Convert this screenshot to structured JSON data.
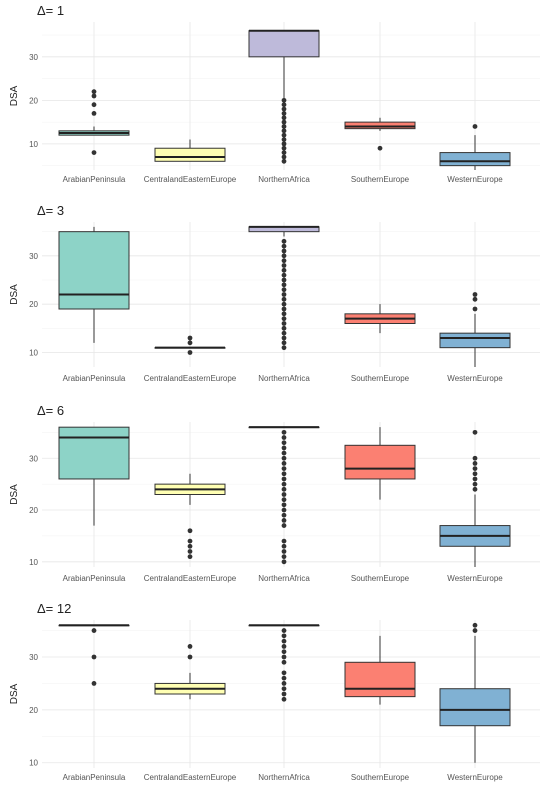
{
  "chart_data": [
    {
      "type": "boxplot",
      "title": "Δ= 1",
      "ylabel": "DSA",
      "ylim": [
        4,
        38
      ],
      "yticks": [
        10,
        20,
        30
      ],
      "categories": [
        "ArabianPeninsula",
        "CentralandEasternEurope",
        "NorthernAfrica",
        "SouthernEurope",
        "WesternEurope"
      ],
      "boxes": [
        {
          "category": "ArabianPeninsula",
          "min": 12,
          "q1": 12,
          "median": 12.5,
          "q3": 13,
          "max": 14,
          "outliers": [
            8,
            17,
            19,
            21,
            22
          ],
          "color": "#8DD3C7"
        },
        {
          "category": "CentralandEasternEurope",
          "min": 6,
          "q1": 6,
          "median": 7,
          "q3": 9,
          "max": 11,
          "outliers": [],
          "color": "#FFFFB3"
        },
        {
          "category": "NorthernAfrica",
          "min": 20,
          "q1": 30,
          "median": 36,
          "q3": 36,
          "max": 36,
          "outliers": [
            6,
            7,
            8,
            9,
            10,
            11,
            12,
            13,
            14,
            15,
            16,
            17,
            18,
            19,
            20
          ],
          "color": "#BEBADA"
        },
        {
          "category": "SouthernEurope",
          "min": 13,
          "q1": 13.5,
          "median": 14,
          "q3": 15,
          "max": 16,
          "outliers": [
            9
          ],
          "color": "#FB8072"
        },
        {
          "category": "WesternEurope",
          "min": 4,
          "q1": 5,
          "median": 6,
          "q3": 8,
          "max": 12,
          "outliers": [
            14
          ],
          "color": "#80B1D3"
        }
      ]
    },
    {
      "type": "boxplot",
      "title": "Δ= 3",
      "ylabel": "DSA",
      "ylim": [
        7,
        37
      ],
      "yticks": [
        10,
        20,
        30
      ],
      "categories": [
        "ArabianPeninsula",
        "CentralandEasternEurope",
        "NorthernAfrica",
        "SouthernEurope",
        "WesternEurope"
      ],
      "boxes": [
        {
          "category": "ArabianPeninsula",
          "min": 12,
          "q1": 19,
          "median": 22,
          "q3": 35,
          "max": 36,
          "outliers": [],
          "color": "#8DD3C7"
        },
        {
          "category": "CentralandEasternEurope",
          "min": 11,
          "q1": 11,
          "median": 11,
          "q3": 11,
          "max": 11,
          "outliers": [
            10,
            12,
            13
          ],
          "color": "#FFFFB3"
        },
        {
          "category": "NorthernAfrica",
          "min": 34,
          "q1": 35,
          "median": 36,
          "q3": 36,
          "max": 36,
          "outliers": [
            11,
            12,
            13,
            14,
            15,
            16,
            17,
            18,
            19,
            20,
            21,
            22,
            23,
            24,
            25,
            26,
            27,
            28,
            29,
            30,
            31,
            32,
            33
          ],
          "color": "#BEBADA"
        },
        {
          "category": "SouthernEurope",
          "min": 14,
          "q1": 16,
          "median": 17,
          "q3": 18,
          "max": 20,
          "outliers": [],
          "color": "#FB8072"
        },
        {
          "category": "WesternEurope",
          "min": 7,
          "q1": 11,
          "median": 13,
          "q3": 14,
          "max": 18,
          "outliers": [
            19,
            21,
            22
          ],
          "color": "#80B1D3"
        }
      ]
    },
    {
      "type": "boxplot",
      "title": "Δ= 6",
      "ylabel": "DSA",
      "ylim": [
        9,
        37
      ],
      "yticks": [
        10,
        20,
        30
      ],
      "categories": [
        "ArabianPeninsula",
        "CentralandEasternEurope",
        "NorthernAfrica",
        "SouthernEurope",
        "WesternEurope"
      ],
      "boxes": [
        {
          "category": "ArabianPeninsula",
          "min": 17,
          "q1": 26,
          "median": 34,
          "q3": 36,
          "max": 36,
          "outliers": [],
          "color": "#8DD3C7"
        },
        {
          "category": "CentralandEasternEurope",
          "min": 21,
          "q1": 23,
          "median": 24,
          "q3": 25,
          "max": 27,
          "outliers": [
            11,
            12,
            13,
            14,
            16
          ],
          "color": "#FFFFB3"
        },
        {
          "category": "NorthernAfrica",
          "min": 36,
          "q1": 36,
          "median": 36,
          "q3": 36,
          "max": 36,
          "outliers": [
            10,
            11,
            12,
            13,
            14,
            17,
            18,
            19,
            20,
            21,
            22,
            23,
            24,
            25,
            26,
            27,
            28,
            29,
            30,
            31,
            32,
            33,
            34,
            35
          ],
          "color": "#BEBADA"
        },
        {
          "category": "SouthernEurope",
          "min": 22,
          "q1": 26,
          "median": 28,
          "q3": 32.5,
          "max": 36,
          "outliers": [],
          "color": "#FB8072"
        },
        {
          "category": "WesternEurope",
          "min": 9,
          "q1": 13,
          "median": 15,
          "q3": 17,
          "max": 23,
          "outliers": [
            24,
            25,
            26,
            27,
            28,
            29,
            30,
            35
          ],
          "color": "#80B1D3"
        }
      ]
    },
    {
      "type": "boxplot",
      "title": "Δ= 12",
      "ylabel": "DSA",
      "ylim": [
        9,
        37
      ],
      "yticks": [
        10,
        20,
        30
      ],
      "categories": [
        "ArabianPeninsula",
        "CentralandEasternEurope",
        "NorthernAfrica",
        "SouthernEurope",
        "WesternEurope"
      ],
      "boxes": [
        {
          "category": "ArabianPeninsula",
          "min": 36,
          "q1": 36,
          "median": 36,
          "q3": 36,
          "max": 36,
          "outliers": [
            25,
            30,
            35
          ],
          "color": "#8DD3C7"
        },
        {
          "category": "CentralandEasternEurope",
          "min": 22,
          "q1": 23,
          "median": 24,
          "q3": 25,
          "max": 27,
          "outliers": [
            30,
            32
          ],
          "color": "#FFFFB3"
        },
        {
          "category": "NorthernAfrica",
          "min": 36,
          "q1": 36,
          "median": 36,
          "q3": 36,
          "max": 36,
          "outliers": [
            22,
            23,
            24,
            25,
            26,
            27,
            29,
            30,
            31,
            32,
            33,
            34,
            35
          ],
          "color": "#BEBADA"
        },
        {
          "category": "SouthernEurope",
          "min": 21,
          "q1": 22.5,
          "median": 24,
          "q3": 29,
          "max": 34,
          "outliers": [],
          "color": "#FB8072"
        },
        {
          "category": "WesternEurope",
          "min": 10,
          "q1": 17,
          "median": 20,
          "q3": 24,
          "max": 34,
          "outliers": [
            35,
            36
          ],
          "color": "#80B1D3"
        }
      ]
    }
  ]
}
